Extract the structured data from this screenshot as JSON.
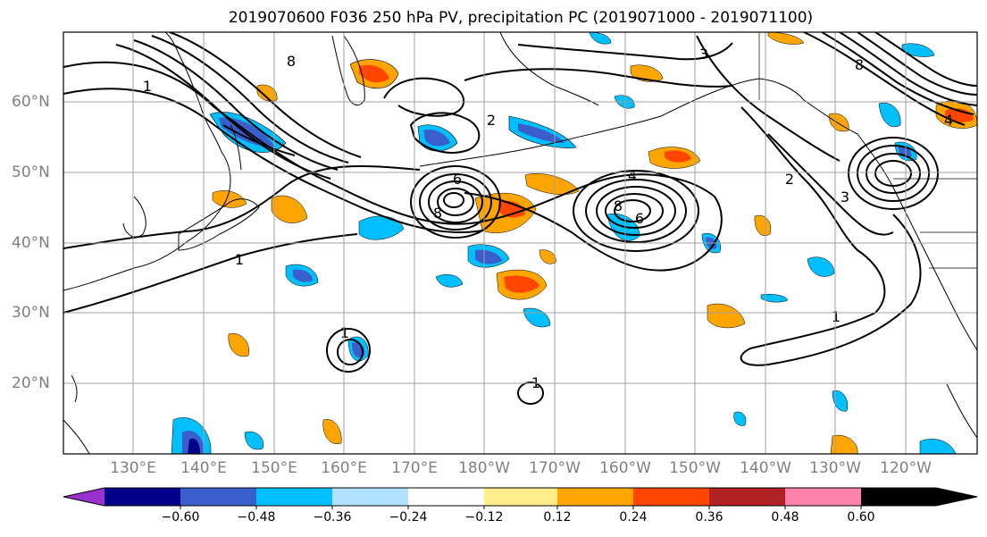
{
  "title": "2019070600 F036 250 hPa PV, precipitation PC (2019071000 - 2019071100)",
  "lat_labels": [
    "60°N",
    "50°N",
    "40°N",
    "30°N",
    "20°N"
  ],
  "lon_labels": [
    "130°E",
    "140°E",
    "150°E",
    "160°E",
    "170°E",
    "180°W",
    "170°W",
    "160°W",
    "150°W",
    "140°W",
    "130°W",
    "120°W"
  ],
  "colorbar": {
    "ticks": [
      "−0.60",
      "−0.48",
      "−0.36",
      "−0.24",
      "−0.12",
      "0.12",
      "0.24",
      "0.36",
      "0.48",
      "0.60"
    ],
    "colors": [
      "#9932cc",
      "#00008b",
      "#3a5fcd",
      "#00bfff",
      "#b0e2ff",
      "#ffffff",
      "#ffec8b",
      "#ffa500",
      "#ff4500",
      "#b22222",
      "#ff82ab"
    ]
  },
  "contour_labels": [
    "1",
    "2",
    "3",
    "4",
    "6",
    "8"
  ]
}
